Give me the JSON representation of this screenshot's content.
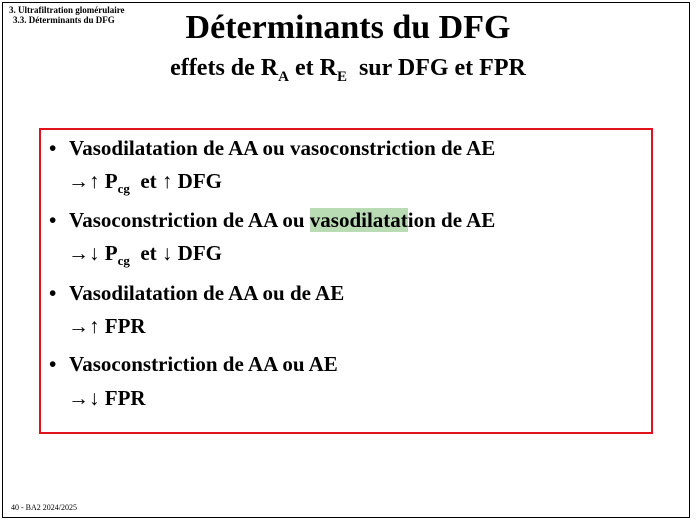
{
  "breadcrumb": {
    "section": "3. Ultrafiltration glomérulaire",
    "subsection": "3.3. Déterminants du DFG"
  },
  "title": "Déterminants du DFG",
  "subtitle": {
    "pre": "effets de R",
    "sub_a": "A",
    "mid": " et R",
    "sub_e": "E",
    "post": "  sur DFG et FPR"
  },
  "items": [
    {
      "bullet": "•",
      "text": "Vasodilatation de AA ou vasoconstriction de AE",
      "effect_pre": "→↑ P",
      "effect_sub": "cg",
      "effect_post": "  et ↑ DFG"
    },
    {
      "bullet": "•",
      "text_pre": "Vasoconstriction de AA ou ",
      "text_highlight": "vasodilatat",
      "text_post": "ion de AE",
      "effect_pre": "→↓ P",
      "effect_sub": "cg",
      "effect_post": "  et ↓ DFG"
    },
    {
      "bullet": "•",
      "text": "Vasodilatation de AA ou de AE",
      "effect": "→↑ FPR"
    },
    {
      "bullet": "•",
      "text": "Vasoconstriction de AA ou AE",
      "effect": "→↓ FPR"
    }
  ],
  "footer": "40 - BA2 2024/2025",
  "colors": {
    "box_border": "#e0121b",
    "highlight": "#b9dcb5"
  }
}
